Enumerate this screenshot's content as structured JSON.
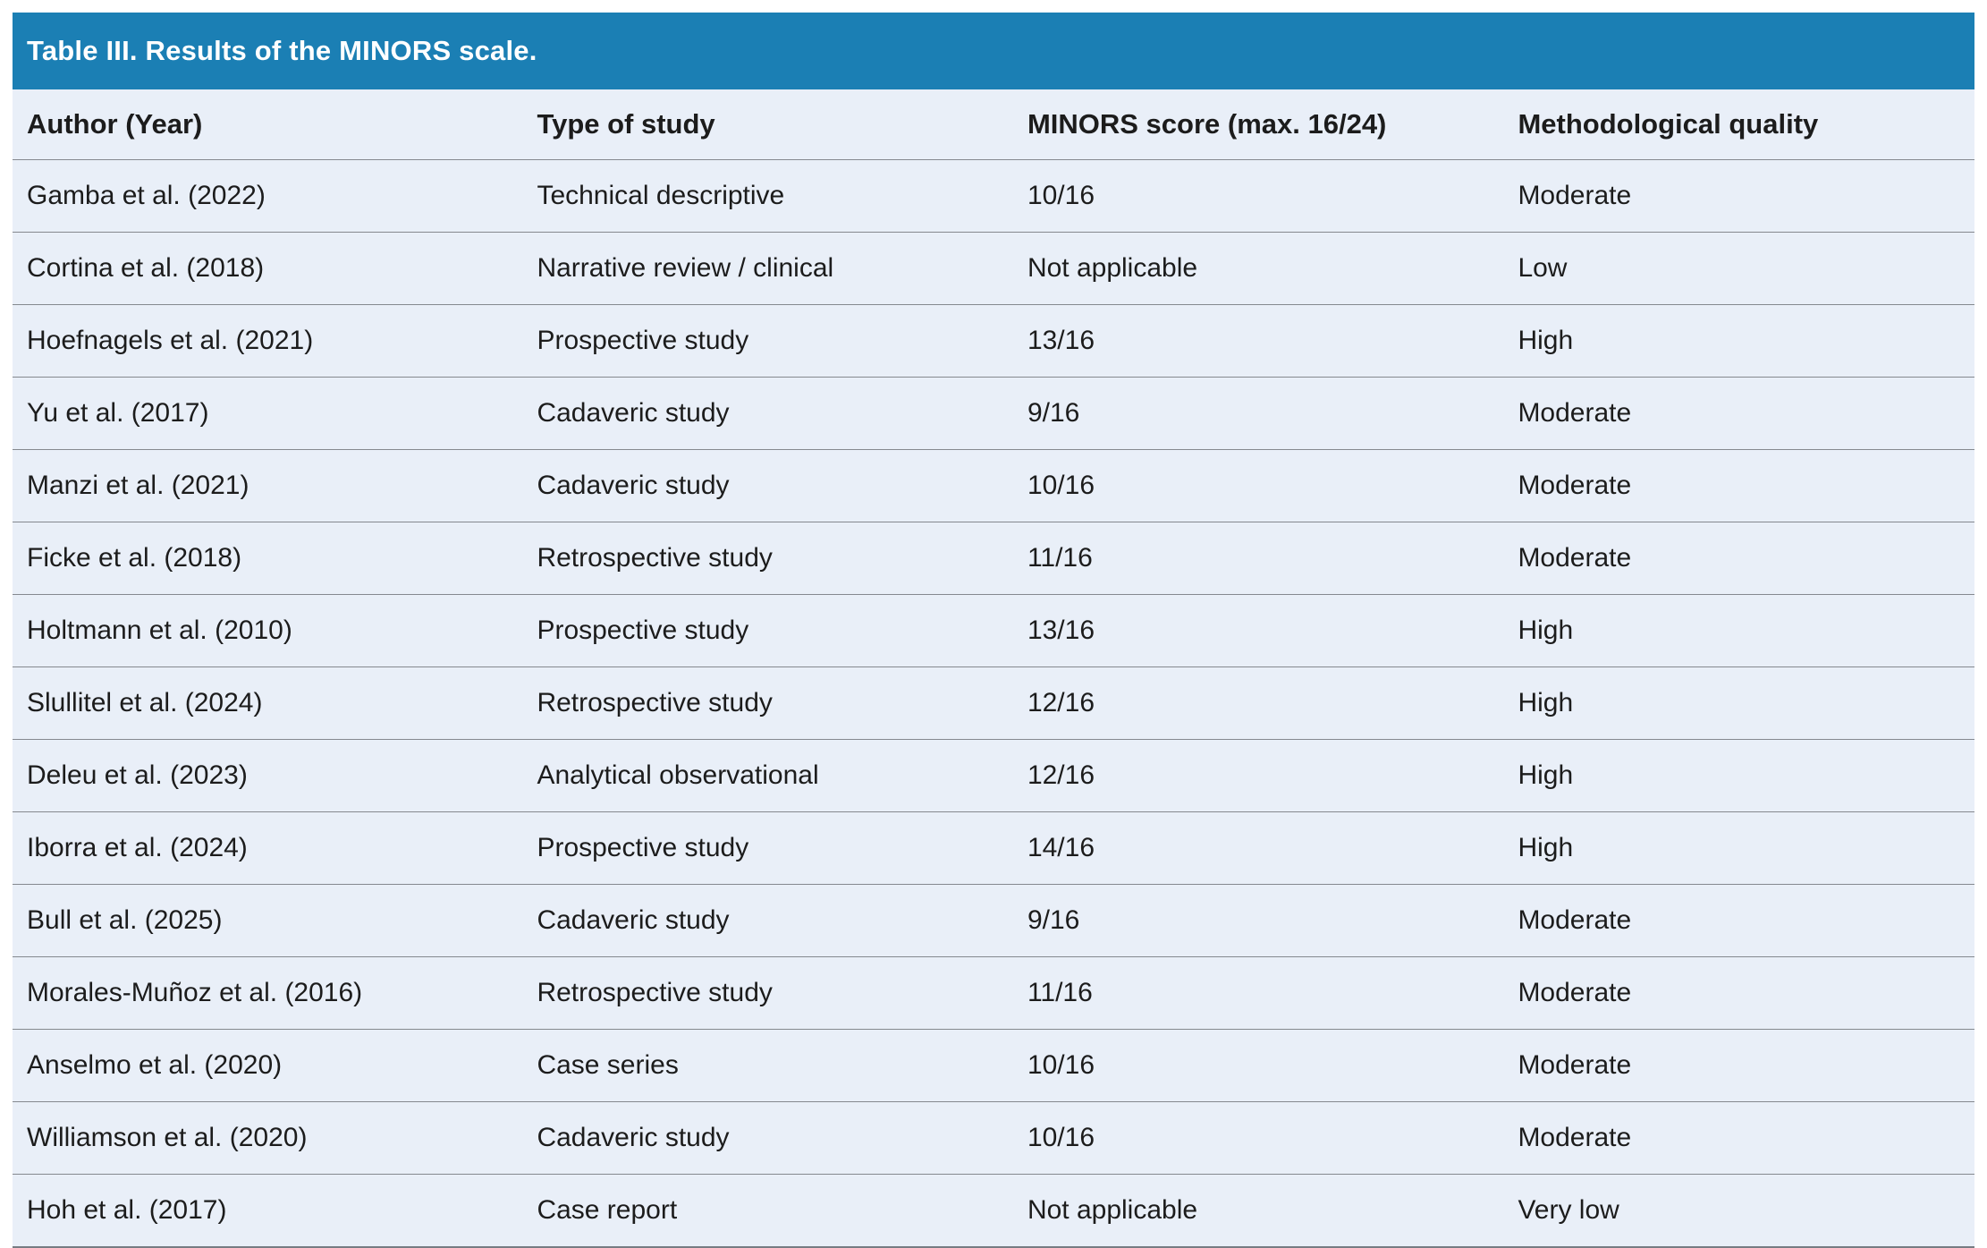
{
  "colors": {
    "title_bar_bg": "#1b7fb4",
    "title_text": "#ffffff",
    "row_bg": "#e9eff8",
    "separator": "#85898f",
    "body_text": "#1c1c1c"
  },
  "table": {
    "title": "Table III. Results of the MINORS scale.",
    "columns": [
      "Author (Year)",
      "Type of study",
      "MINORS score (max. 16/24)",
      "Methodological quality"
    ],
    "rows": [
      [
        "Gamba et al. (2022)",
        "Technical descriptive",
        "10/16",
        "Moderate"
      ],
      [
        "Cortina et al. (2018)",
        "Narrative review / clinical",
        "Not applicable",
        "Low"
      ],
      [
        "Hoefnagels et al. (2021)",
        "Prospective study",
        "13/16",
        "High"
      ],
      [
        "Yu et al. (2017)",
        "Cadaveric study",
        "9/16",
        "Moderate"
      ],
      [
        "Manzi et al. (2021)",
        "Cadaveric study",
        "10/16",
        "Moderate"
      ],
      [
        "Ficke et al. (2018)",
        "Retrospective study",
        "11/16",
        "Moderate"
      ],
      [
        "Holtmann et al. (2010)",
        "Prospective study",
        "13/16",
        "High"
      ],
      [
        "Slullitel et al. (2024)",
        "Retrospective study",
        "12/16",
        "High"
      ],
      [
        "Deleu et al. (2023)",
        "Analytical observational",
        "12/16",
        "High"
      ],
      [
        "Iborra et al. (2024)",
        "Prospective study",
        "14/16",
        "High"
      ],
      [
        "Bull et al. (2025)",
        "Cadaveric study",
        "9/16",
        "Moderate"
      ],
      [
        "Morales-Muñoz et al. (2016)",
        "Retrospective study",
        "11/16",
        "Moderate"
      ],
      [
        "Anselmo et al. (2020)",
        "Case series",
        "10/16",
        "Moderate"
      ],
      [
        "Williamson et al. (2020)",
        "Cadaveric study",
        "10/16",
        "Moderate"
      ],
      [
        "Hoh et al. (2017)",
        "Case report",
        "Not applicable",
        "Very low"
      ]
    ]
  }
}
